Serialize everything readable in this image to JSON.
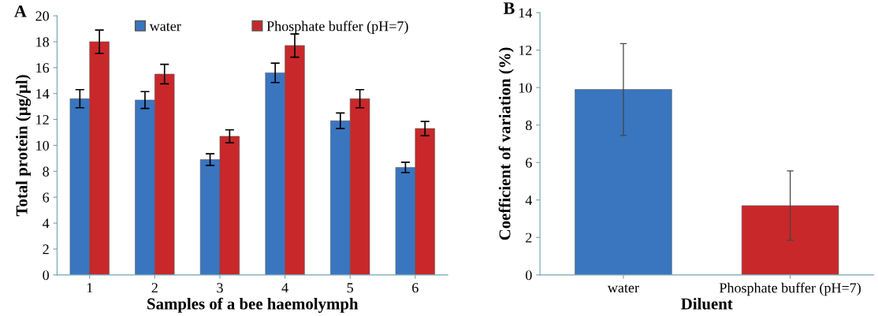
{
  "chart_data": [
    {
      "type": "bar",
      "title": "A",
      "xlabel": "Samples of a bee haemolymph",
      "ylabel": "Total protein (µg/µl)",
      "categories": [
        "1",
        "2",
        "3",
        "4",
        "5",
        "6"
      ],
      "ylim": [
        0,
        20
      ],
      "yticks": [
        0,
        2,
        4,
        6,
        8,
        10,
        12,
        14,
        16,
        18,
        20
      ],
      "legend": "top",
      "grid": false,
      "series": [
        {
          "name": "water",
          "color": "#3a75c0",
          "values": [
            13.6,
            13.5,
            8.9,
            15.6,
            11.9,
            8.3
          ],
          "errors": [
            0.7,
            0.65,
            0.45,
            0.75,
            0.6,
            0.4
          ]
        },
        {
          "name": "Phosphate buffer (pH=7)",
          "color": "#c8282a",
          "values": [
            18.0,
            15.5,
            10.7,
            17.7,
            13.6,
            11.3
          ],
          "errors": [
            0.9,
            0.75,
            0.5,
            0.9,
            0.7,
            0.55
          ]
        }
      ]
    },
    {
      "type": "bar",
      "title": "B",
      "xlabel": "Diluent",
      "ylabel": "Coefficient of variation (%)",
      "categories": [
        "water",
        "Phosphate buffer (pH=7)"
      ],
      "ylim": [
        0,
        14
      ],
      "yticks": [
        0,
        2,
        4,
        6,
        8,
        10,
        12,
        14
      ],
      "grid": false,
      "values": [
        9.9,
        3.7
      ],
      "colors": [
        "#3a75c0",
        "#c8282a"
      ],
      "errors": [
        2.45,
        1.85
      ]
    }
  ]
}
